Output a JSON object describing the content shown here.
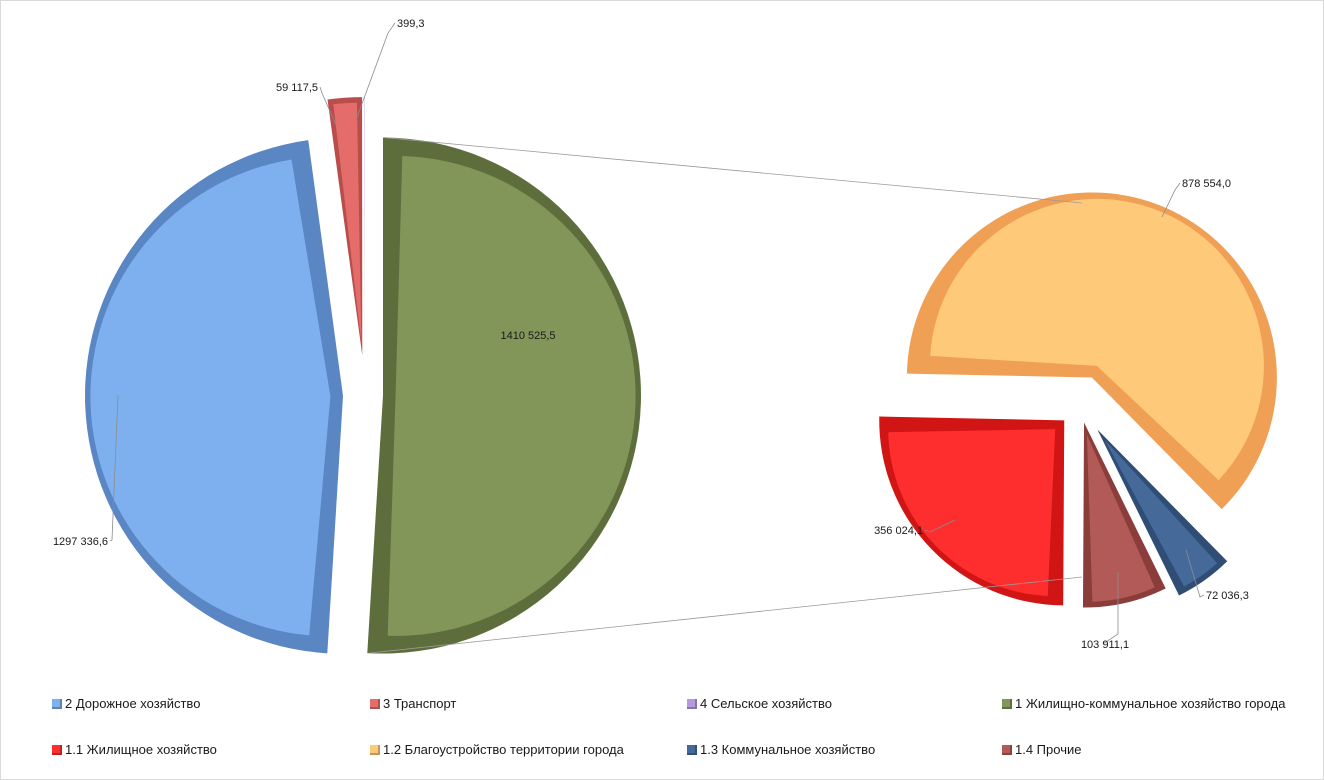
{
  "chart_data": {
    "type": "pie",
    "variant": "pie-of-pie",
    "main_pie": {
      "slices": [
        {
          "name": "2 Дорожное хозяйство",
          "value": 1297336.6,
          "label": "1297 336,6",
          "color": "#7eb0f0",
          "side": "#5a86c4"
        },
        {
          "name": "3 Транспорт",
          "value": 59117.5,
          "label": "59 117,5",
          "color": "#e46c6a",
          "side": "#b84d4b"
        },
        {
          "name": "4 Сельское хозяйство",
          "value": 399.3,
          "label": "399,3",
          "color": "#b49ae0",
          "side": "#8b72b8"
        },
        {
          "name": "1 Жилищно-коммунальное хозяйство города",
          "value": 1410525.5,
          "label": "1410 525,5",
          "color": "#82965a",
          "side": "#5d6e3c"
        }
      ]
    },
    "secondary_pie": {
      "slices": [
        {
          "name": "1.1 Жилищное хозяйство",
          "value": 356024.1,
          "label": "356 024,1",
          "color": "#ff2e2e",
          "side": "#d11414"
        },
        {
          "name": "1.2 Благоустройство территории города",
          "value": 878554.0,
          "label": "878 554,0",
          "color": "#ffc97a",
          "side": "#f0a055"
        },
        {
          "name": "1.3 Коммунальное хозяйство",
          "value": 72036.3,
          "label": "72 036,3",
          "color": "#456a9a",
          "side": "#2f4d75"
        },
        {
          "name": "1.4 Прочие",
          "value": 103911.1,
          "label": "103 911,1",
          "color": "#b25a57",
          "side": "#8a3d3b"
        }
      ]
    },
    "legend": [
      {
        "label": "2 Дорожное хозяйство",
        "color": "#7eb0f0"
      },
      {
        "label": "3 Транспорт",
        "color": "#e46c6a"
      },
      {
        "label": "4 Сельское хозяйство",
        "color": "#b49ae0"
      },
      {
        "label": "1 Жилищно-коммунальное хозяйство города",
        "color": "#82965a"
      },
      {
        "label": "1.1 Жилищное хозяйство",
        "color": "#ff2e2e"
      },
      {
        "label": "1.2 Благоустройство территории города",
        "color": "#ffc97a"
      },
      {
        "label": "1.3 Коммунальное хозяйство",
        "color": "#456a9a"
      },
      {
        "label": "1.4 Прочие",
        "color": "#b25a57"
      }
    ],
    "legend_position": "bottom"
  }
}
